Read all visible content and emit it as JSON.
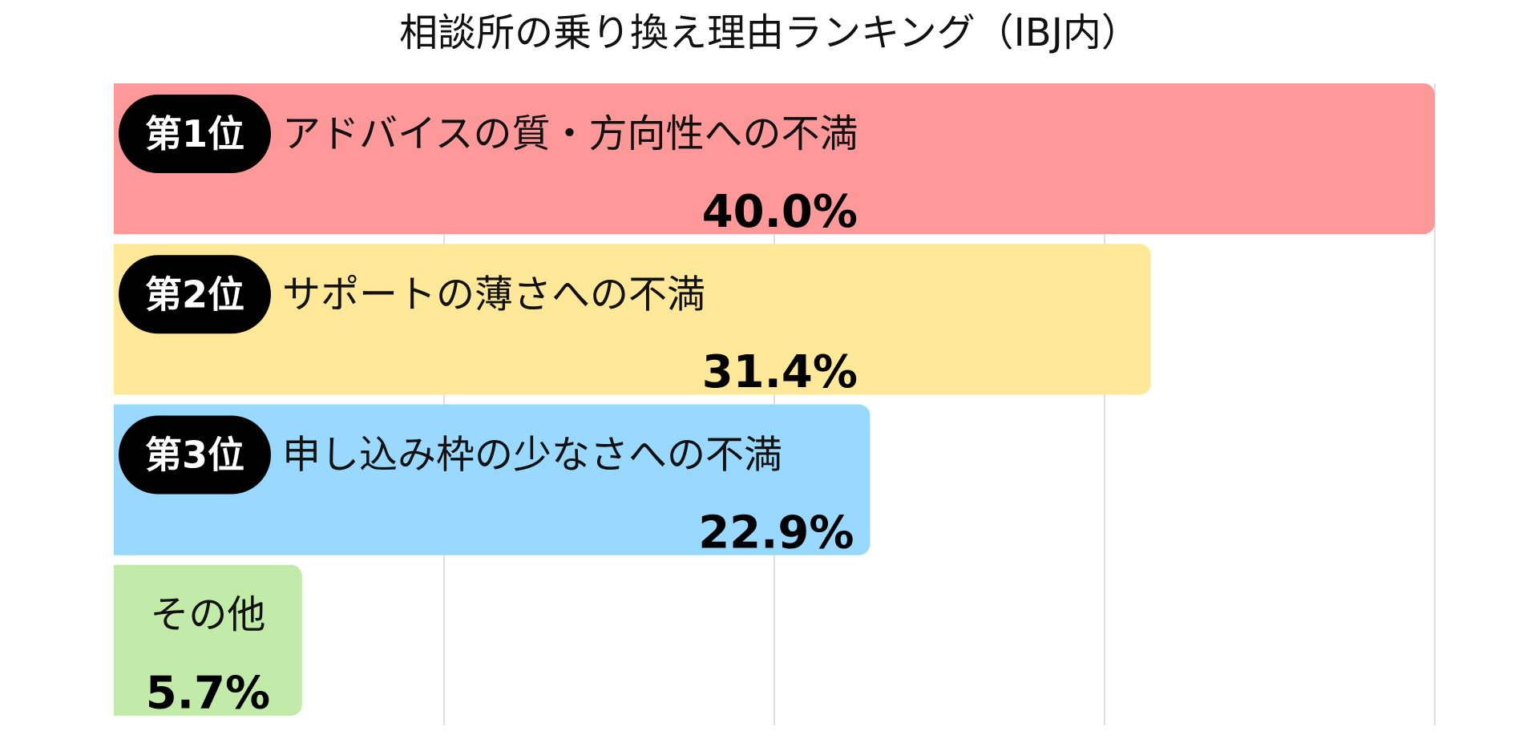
{
  "chart_data": {
    "type": "bar",
    "orientation": "horizontal",
    "title": "相談所の乗り換え理由ランキング（IBJ内）",
    "xlabel": "",
    "ylabel": "",
    "xlim": [
      0,
      40
    ],
    "grid": true,
    "legend": "none",
    "bars": [
      {
        "rank": "第1位",
        "label": "アドバイスの質・方向性への不満",
        "value": 40.0,
        "value_label": "40.0%",
        "color": "#ff9999"
      },
      {
        "rank": "第2位",
        "label": "サポートの薄さへの不満",
        "value": 31.4,
        "value_label": "31.4%",
        "color": "#ffe999"
      },
      {
        "rank": "第3位",
        "label": "申し込み枠の少なさへの不満",
        "value": 22.9,
        "value_label": "22.9%",
        "color": "#99d8ff"
      },
      {
        "rank": "",
        "label": "その他",
        "value": 5.7,
        "value_label": "5.7%",
        "color": "#c2eaa8"
      }
    ]
  }
}
